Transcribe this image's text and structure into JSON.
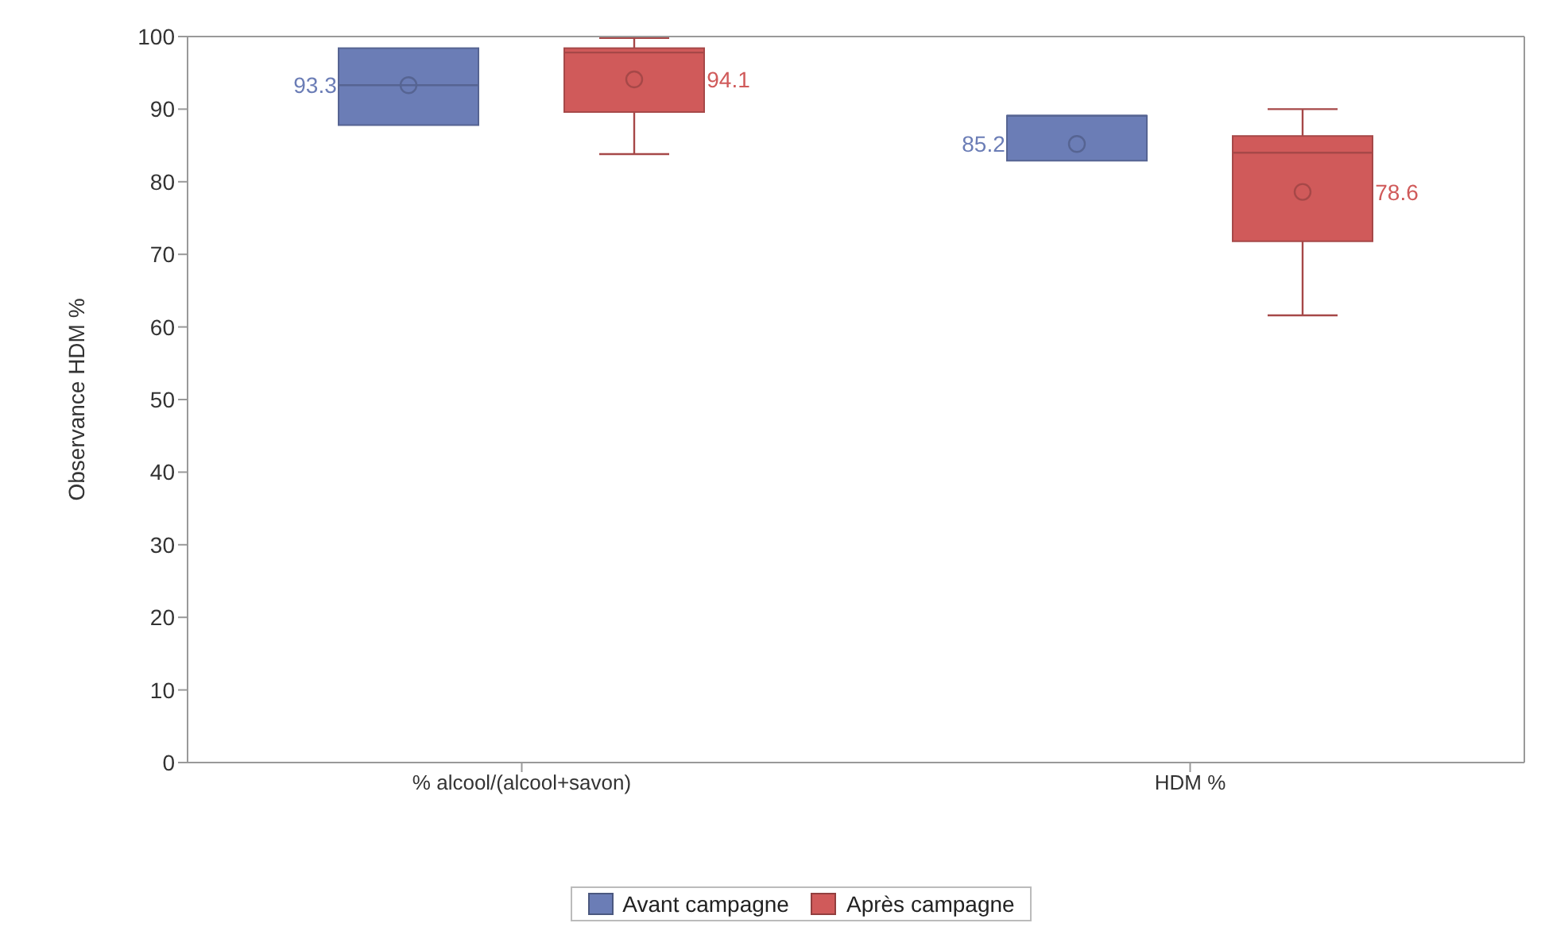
{
  "chart_data": {
    "type": "box",
    "ylabel": "Observance HDM %",
    "categories": [
      "% alcool/(alcool+savon)",
      "HDM %"
    ],
    "series": [
      {
        "name": "Avant campagne",
        "color": "#6b7db6",
        "boxes": [
          {
            "low": 87.8,
            "q1": 87.8,
            "median": 93.3,
            "q3": 98.4,
            "high": 98.4,
            "mean": 93.3
          },
          {
            "low": 82.9,
            "q1": 82.9,
            "median": 89.1,
            "q3": 89.1,
            "high": 89.1,
            "mean": 85.2
          }
        ]
      },
      {
        "name": "Après campagne",
        "color": "#d05a5a",
        "boxes": [
          {
            "low": 83.8,
            "q1": 89.6,
            "median": 97.8,
            "q3": 98.4,
            "high": 99.8,
            "mean": 94.1
          },
          {
            "low": 61.6,
            "q1": 71.8,
            "median": 84.0,
            "q3": 86.3,
            "high": 90.0,
            "mean": 78.6
          }
        ]
      }
    ],
    "annotations": [
      "85.2",
      "93.3",
      "94.1",
      "78.6"
    ],
    "ylim": [
      0,
      100
    ],
    "yticks": [
      0,
      10,
      20,
      30,
      40,
      50,
      60,
      70,
      80,
      90,
      100
    ],
    "grid": false,
    "legend": "bottom"
  }
}
